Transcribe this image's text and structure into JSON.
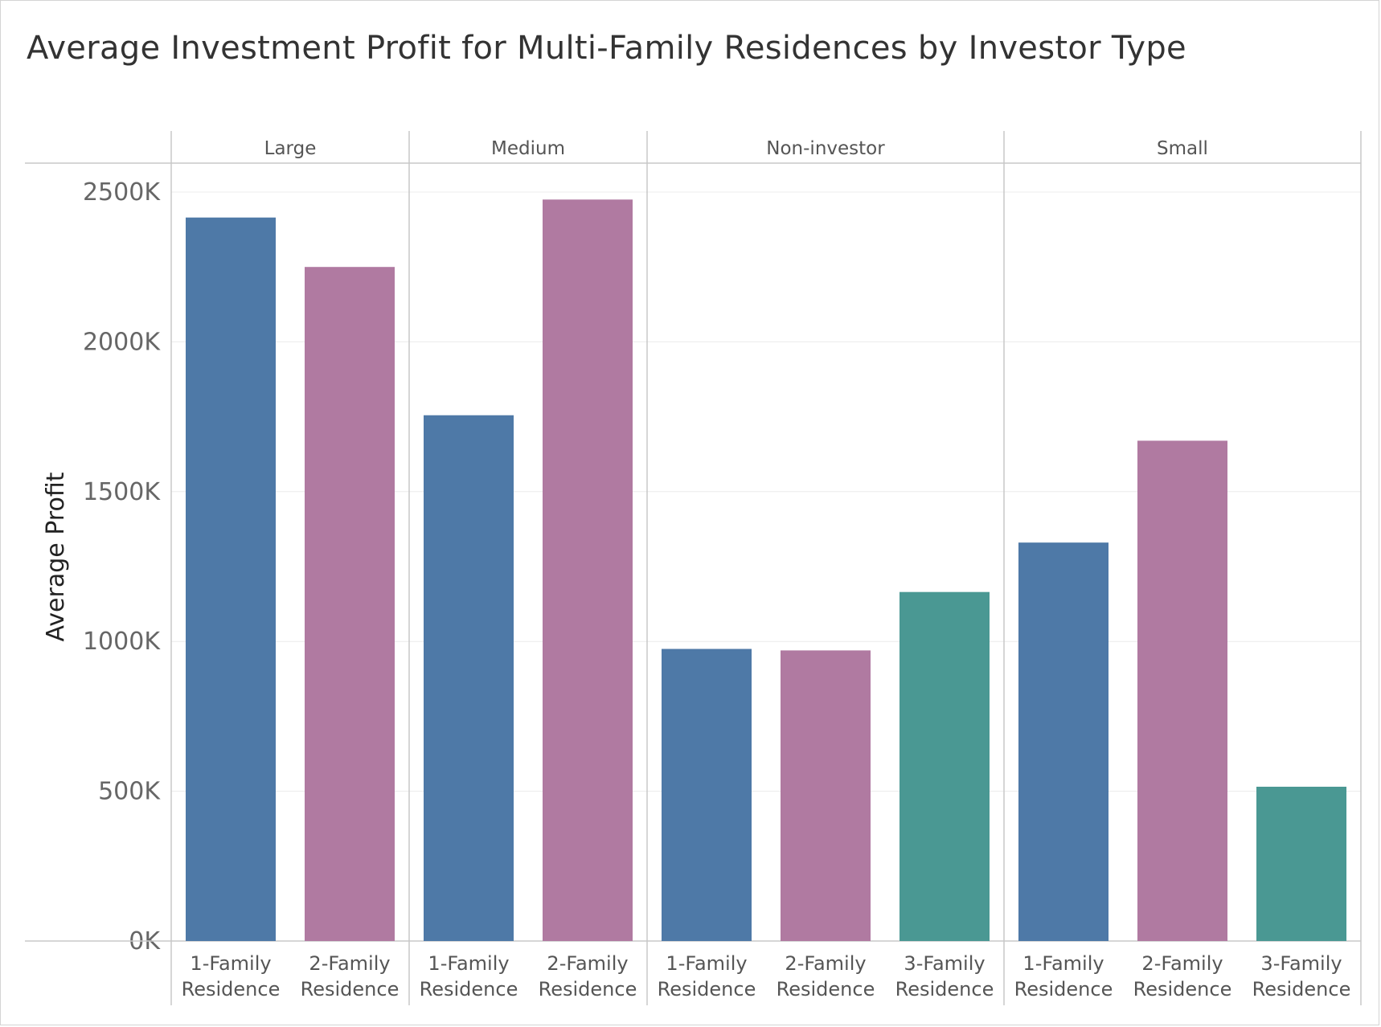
{
  "chart_data": {
    "type": "bar",
    "title": "Average Investment Profit for Multi-Family Residences by Investor Type",
    "ylabel": "Average Profit",
    "xlabel": "",
    "ylim": [
      0,
      2600000
    ],
    "yticks": [
      0,
      500000,
      1000000,
      1500000,
      2000000,
      2500000
    ],
    "ytick_labels": [
      "0K",
      "500K",
      "1000K",
      "1500K",
      "2000K",
      "2500K"
    ],
    "grid": true,
    "legend": "none",
    "category_colors": {
      "1-Family Residence": "#4e79a7",
      "2-Family Residence": "#b07aa1",
      "3-Family Residence": "#4a9893"
    },
    "panels": [
      {
        "name": "Large",
        "bars": [
          {
            "category": "1-Family Residence",
            "value": 2415000
          },
          {
            "category": "2-Family Residence",
            "value": 2250000
          }
        ]
      },
      {
        "name": "Medium",
        "bars": [
          {
            "category": "1-Family Residence",
            "value": 1755000
          },
          {
            "category": "2-Family Residence",
            "value": 2475000
          }
        ]
      },
      {
        "name": "Non-investor",
        "bars": [
          {
            "category": "1-Family Residence",
            "value": 975000
          },
          {
            "category": "2-Family Residence",
            "value": 970000
          },
          {
            "category": "3-Family Residence",
            "value": 1165000
          }
        ]
      },
      {
        "name": "Small",
        "bars": [
          {
            "category": "1-Family Residence",
            "value": 1330000
          },
          {
            "category": "2-Family Residence",
            "value": 1670000
          },
          {
            "category": "3-Family Residence",
            "value": 515000
          }
        ]
      }
    ]
  }
}
